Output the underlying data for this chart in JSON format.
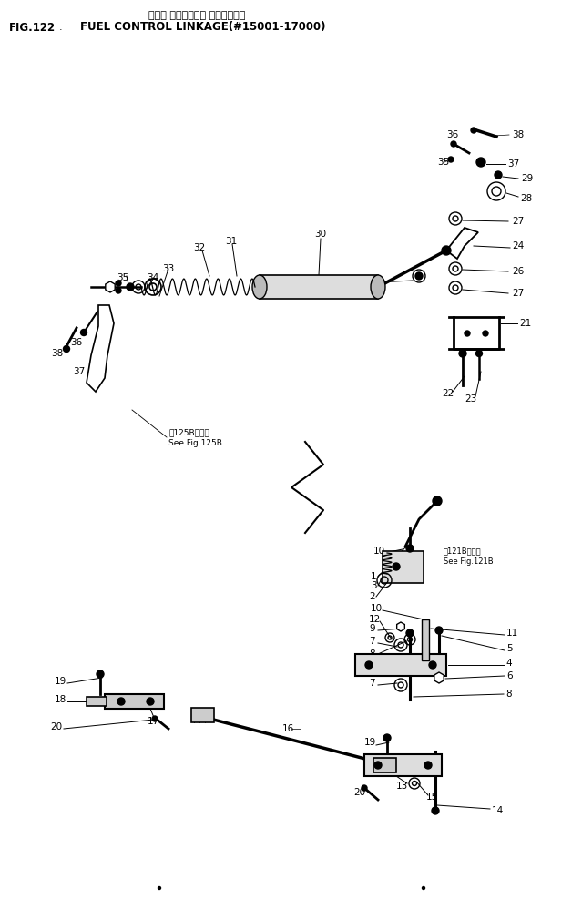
{
  "title_jp": "フェル コントロール リンケージ゚",
  "title_en": "FUEL CONTROL LINKAGE(#15001-17000)",
  "fig_label": "FIG.122",
  "bg_color": "#ffffff",
  "lc": "#000000",
  "tc": "#000000",
  "fig_width": 6.39,
  "fig_height": 9.88,
  "dpi": 100
}
